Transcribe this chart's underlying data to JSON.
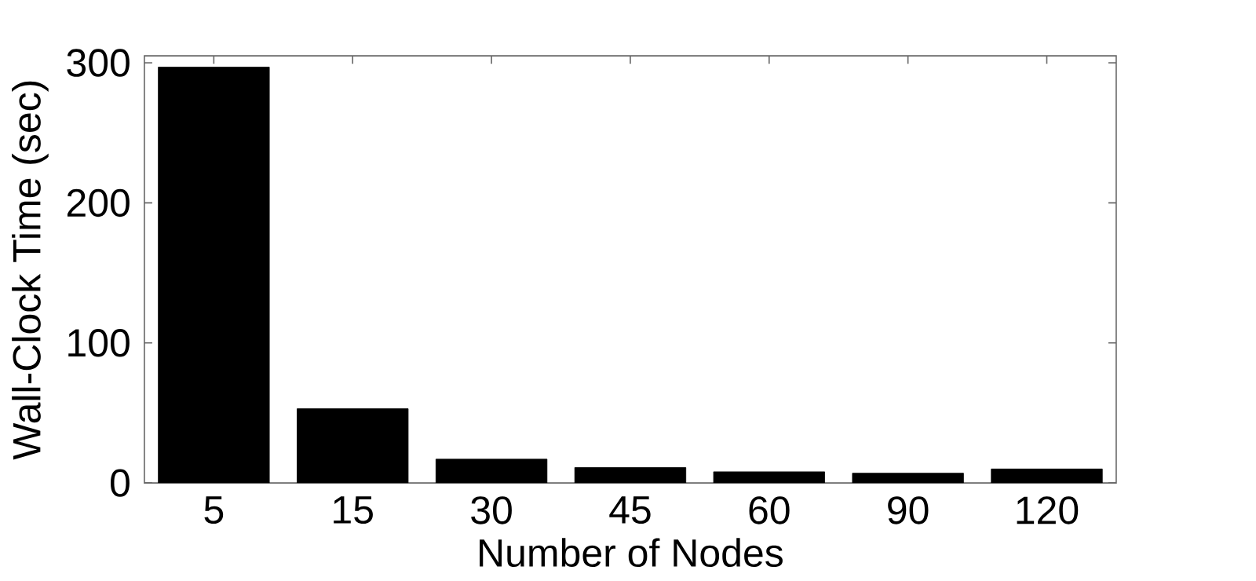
{
  "chart_data": {
    "type": "bar",
    "xlabel": "Number of Nodes",
    "ylabel": "Wall-Clock Time (sec)",
    "categories": [
      "5",
      "15",
      "30",
      "45",
      "60",
      "90",
      "120"
    ],
    "values": [
      297,
      53,
      17,
      11,
      8,
      7,
      10
    ],
    "color": "#000000",
    "ylim": [
      0,
      305
    ],
    "yticks": [
      0,
      100,
      200,
      300
    ]
  }
}
